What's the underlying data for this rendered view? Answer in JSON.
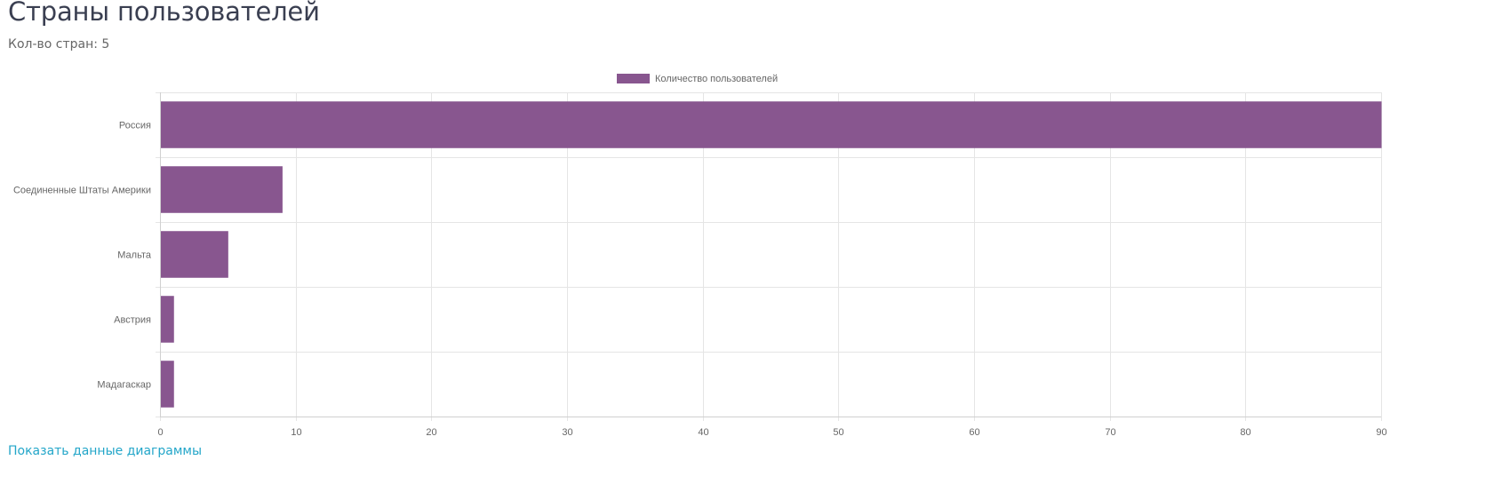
{
  "header": {
    "title": "Страны пользователей",
    "count_text": "Кол-во стран: 5"
  },
  "chart_data": {
    "type": "bar",
    "orientation": "horizontal",
    "categories": [
      "Россия",
      "Соединенные Штаты Америки",
      "Мальта",
      "Австрия",
      "Мадагаскар"
    ],
    "series": [
      {
        "name": "Количество пользователей",
        "values": [
          90,
          9,
          5,
          1,
          1
        ],
        "color": "#88568f"
      }
    ],
    "xlim": [
      0,
      90
    ],
    "xticks": [
      "0",
      "10",
      "20",
      "30",
      "40",
      "50",
      "60",
      "70",
      "80",
      "90"
    ],
    "grid": true,
    "legend": "top-center"
  },
  "footer": {
    "link_label": "Показать данные диаграммы"
  },
  "colors": {
    "bar": "#88568f",
    "grid": "#e5e5e5",
    "axis_text": "#666666",
    "link": "#23a6c9"
  }
}
